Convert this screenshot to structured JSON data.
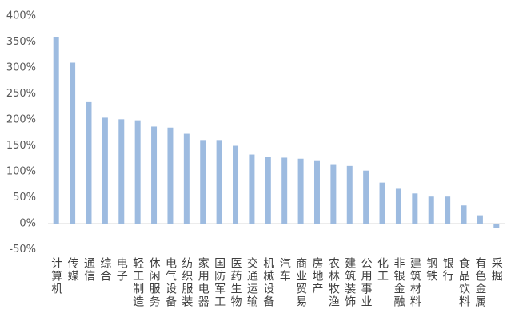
{
  "chart_data": {
    "type": "bar",
    "categories": [
      "计算机",
      "传媒",
      "通信",
      "综合",
      "电子",
      "轻工制造",
      "休闲服务",
      "电气设备",
      "纺织服装",
      "家用电器",
      "国防军工",
      "医药生物",
      "交通运输",
      "机械设备",
      "汽车",
      "商业贸易",
      "房地产",
      "农林牧渔",
      "建筑装饰",
      "公用事业",
      "化工",
      "非银金融",
      "建筑材料",
      "钢铁",
      "银行",
      "食品饮料",
      "有色金属",
      "采掘"
    ],
    "values": [
      360,
      310,
      234,
      204,
      201,
      199,
      187,
      185,
      173,
      161,
      161,
      150,
      133,
      129,
      127,
      125,
      122,
      113,
      111,
      102,
      79,
      67,
      58,
      52,
      52,
      35,
      16,
      -9
    ],
    "color": "#9dbbe0",
    "ylim": [
      -50,
      400
    ],
    "yticks": [
      {
        "value": -50,
        "label": "-50%"
      },
      {
        "value": 0,
        "label": "0%"
      },
      {
        "value": 50,
        "label": "50%"
      },
      {
        "value": 100,
        "label": "100%"
      },
      {
        "value": 150,
        "label": "150%"
      },
      {
        "value": 200,
        "label": "200%"
      },
      {
        "value": 250,
        "label": "250%"
      },
      {
        "value": 300,
        "label": "300%"
      },
      {
        "value": 350,
        "label": "350%"
      },
      {
        "value": 400,
        "label": "400%"
      }
    ],
    "grid": false
  }
}
